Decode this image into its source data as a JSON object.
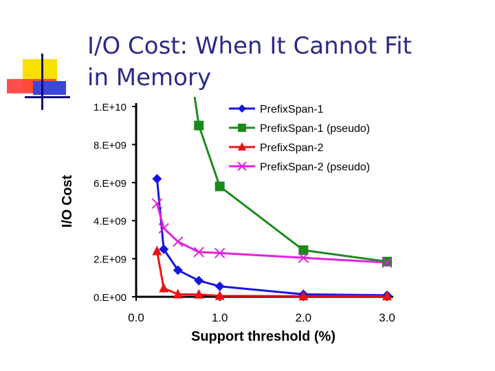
{
  "slide": {
    "title_line1": "I/O Cost: When It Cannot Fit",
    "title_line2": "in Memory"
  },
  "chart_data": {
    "type": "line",
    "title": "",
    "xlabel": "Support threshold (%)",
    "ylabel": "I/O Cost",
    "xlim": [
      0,
      3
    ],
    "ylim": [
      0,
      10000000000
    ],
    "x_ticks": [
      0,
      1,
      2,
      3
    ],
    "x_tick_labels": [
      "0.0",
      "1.0",
      "2.0",
      "3.0"
    ],
    "y_ticks": [
      0,
      2000000000,
      4000000000,
      6000000000,
      8000000000,
      10000000000
    ],
    "y_tick_labels": [
      "0.E+00",
      "2.E+09",
      "4.E+09",
      "6.E+09",
      "8.E+09",
      "1.E+10"
    ],
    "grid": false,
    "legend_position": "top-right",
    "series": [
      {
        "name": "PrefixSpan-1",
        "color": "#1515e0",
        "marker": "diamond",
        "x": [
          0.25,
          0.33,
          0.5,
          0.75,
          1.0,
          2.0,
          3.0
        ],
        "y": [
          6200000000,
          2500000000,
          1400000000,
          850000000,
          550000000,
          130000000,
          80000000
        ]
      },
      {
        "name": "PrefixSpan-1 (pseudo)",
        "color": "#1a8a1a",
        "marker": "square",
        "x": [
          0.75,
          1.0,
          2.0,
          3.0
        ],
        "y": [
          9000000000,
          5800000000,
          2450000000,
          1850000000
        ],
        "extends_above_top_to": {
          "x": 0.7,
          "y": 10500000000
        }
      },
      {
        "name": "PrefixSpan-2",
        "color": "#ee1111",
        "marker": "triangle",
        "x": [
          0.25,
          0.33,
          0.5,
          0.75,
          1.0,
          2.0,
          3.0
        ],
        "y": [
          2400000000,
          450000000,
          130000000,
          120000000,
          50000000,
          30000000,
          30000000
        ]
      },
      {
        "name": "PrefixSpan-2 (pseudo)",
        "color": "#e020e0",
        "marker": "x",
        "x": [
          0.25,
          0.33,
          0.5,
          0.75,
          1.0,
          2.0,
          3.0
        ],
        "y": [
          4900000000,
          3600000000,
          2900000000,
          2350000000,
          2300000000,
          2050000000,
          1800000000
        ]
      }
    ]
  }
}
